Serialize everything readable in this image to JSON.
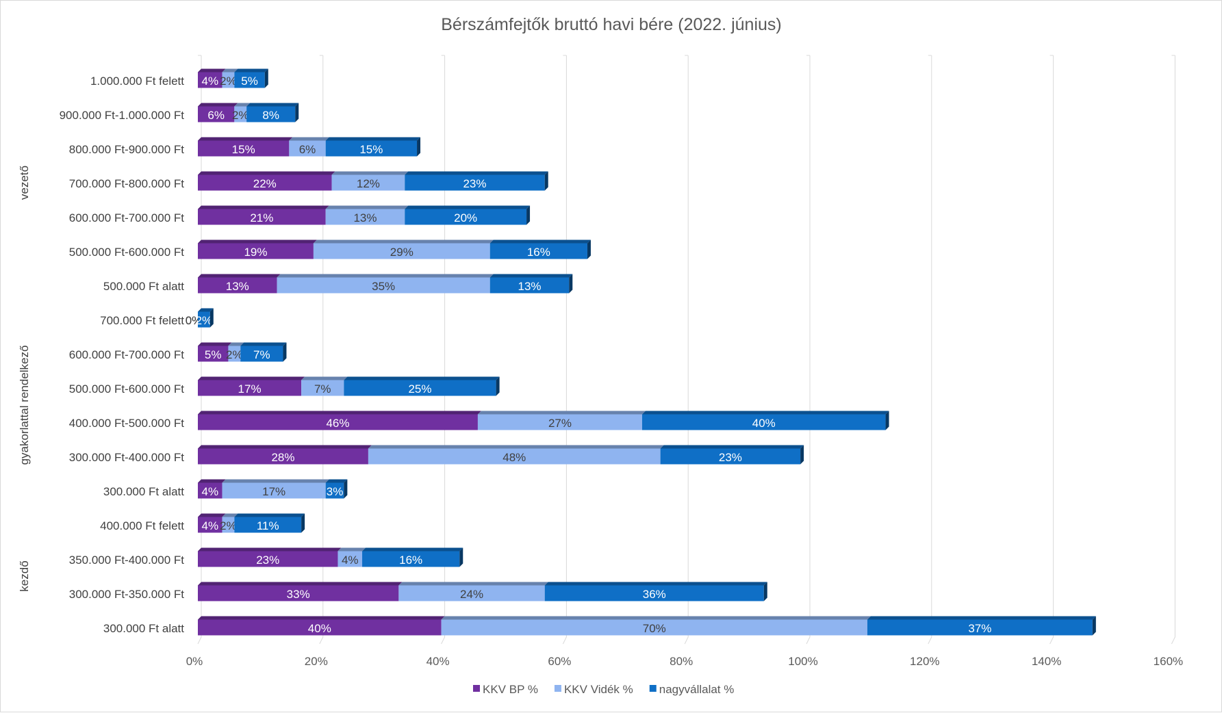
{
  "chart_data": {
    "type": "bar",
    "orientation": "horizontal",
    "stacked": true,
    "style": "3d",
    "title": "Bérszámfejtők bruttó havi bére (2022. június)",
    "xlim": [
      0,
      160
    ],
    "x_ticks": [
      "0%",
      "20%",
      "40%",
      "60%",
      "80%",
      "100%",
      "120%",
      "140%",
      "160%"
    ],
    "grid": true,
    "legend_position": "bottom",
    "groups": [
      {
        "name": "vezető",
        "categories": [
          "1.000.000 Ft felett",
          "900.000 Ft-1.000.000 Ft",
          "800.000 Ft-900.000 Ft",
          "700.000 Ft-800.000 Ft",
          "600.000 Ft-700.000 Ft",
          "500.000 Ft-600.000 Ft",
          "500.000 Ft alatt"
        ]
      },
      {
        "name": "gyakorlattal rendelkező",
        "categories": [
          "700.000 Ft felett",
          "600.000 Ft-700.000 Ft",
          "500.000 Ft-600.000 Ft",
          "400.000 Ft-500.000 Ft",
          "300.000 Ft-400.000 Ft",
          "300.000 Ft alatt"
        ]
      },
      {
        "name": "kezdő",
        "categories": [
          "400.000 Ft felett",
          "350.000 Ft-400.000 Ft",
          "300.000 Ft-350.000 Ft",
          "300.000 Ft alatt"
        ]
      }
    ],
    "series": [
      {
        "name": "KKV BP %",
        "color": "#7030A0",
        "label_color": "#ffffff",
        "values": [
          4,
          6,
          15,
          22,
          21,
          19,
          13,
          0,
          5,
          17,
          46,
          28,
          4,
          4,
          23,
          33,
          40
        ],
        "labels": [
          "4%",
          "6%",
          "15%",
          "22%",
          "21%",
          "19%",
          "13%",
          "0%",
          "5%",
          "17%",
          "46%",
          "28%",
          "4%",
          "4%",
          "23%",
          "33%",
          "40%"
        ]
      },
      {
        "name": "KKV Vidék %",
        "color": "#8FB4F0",
        "label_color": "#404040",
        "values": [
          2,
          2,
          6,
          12,
          13,
          29,
          35,
          0,
          2,
          7,
          27,
          48,
          17,
          2,
          4,
          24,
          70
        ],
        "labels": [
          "2%",
          "2%",
          "6%",
          "12%",
          "13%",
          "29%",
          "35%",
          "0%",
          "2%",
          "7%",
          "27%",
          "48%",
          "17%",
          "2%",
          "4%",
          "24%",
          "70%"
        ]
      },
      {
        "name": "nagyvállalat %",
        "color": "#0F6FC6",
        "label_color": "#ffffff",
        "values": [
          5,
          8,
          15,
          23,
          20,
          16,
          13,
          2,
          7,
          25,
          40,
          23,
          3,
          11,
          16,
          36,
          37
        ],
        "labels": [
          "5%",
          "8%",
          "15%",
          "23%",
          "20%",
          "16%",
          "13%",
          "2%",
          "7%",
          "25%",
          "40%",
          "23%",
          "3%",
          "11%",
          "16%",
          "36%",
          "37%"
        ]
      }
    ]
  }
}
